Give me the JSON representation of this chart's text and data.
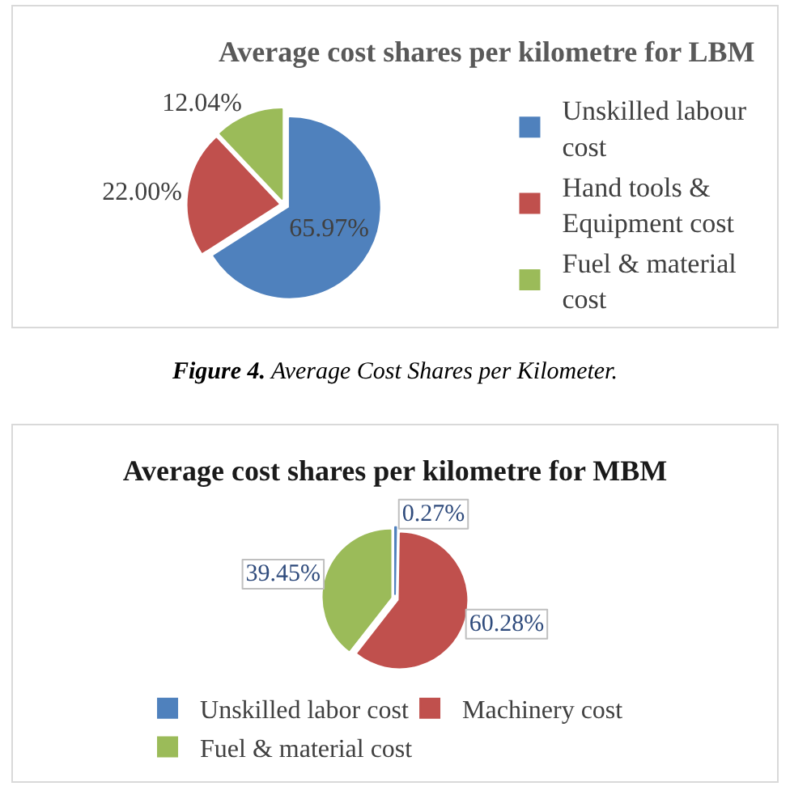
{
  "chart_data": [
    {
      "type": "pie",
      "title": "Average cost shares per kilometre for LBM",
      "categories": [
        "Unskilled labour cost",
        "Hand tools & Equipment cost",
        "Fuel & material cost"
      ],
      "values": [
        65.97,
        22.0,
        12.04
      ],
      "colors": [
        "#4f81bd",
        "#c0504d",
        "#9bbb59"
      ],
      "value_labels": [
        "65.97%",
        "22.00%",
        "12.04%"
      ],
      "legend": "right",
      "annotations": [
        "Figure 4. Average Cost Shares per Kilometer."
      ]
    },
    {
      "type": "pie",
      "title": "Average cost shares per kilometre for MBM",
      "categories": [
        "Unskilled labor cost",
        "Machinery cost",
        "Fuel & material cost"
      ],
      "values": [
        0.27,
        60.28,
        39.45
      ],
      "colors": [
        "#4f81bd",
        "#c0504d",
        "#9bbb59"
      ],
      "value_labels": [
        "0.27%",
        "60.28%",
        "39.45%"
      ],
      "legend": "bottom"
    }
  ]
}
